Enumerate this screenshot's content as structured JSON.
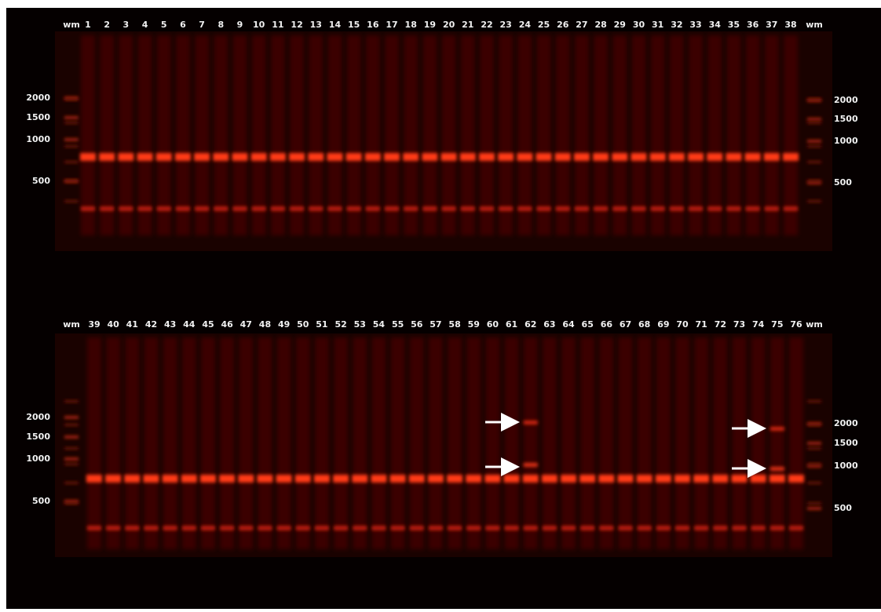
{
  "panels": [
    {
      "lanes": [
        "wm",
        "1",
        "2",
        "3",
        "4",
        "5",
        "6",
        "7",
        "8",
        "9",
        "10",
        "11",
        "12",
        "13",
        "14",
        "15",
        "16",
        "17",
        "18",
        "19",
        "20",
        "21",
        "22",
        "23",
        "24",
        "25",
        "26",
        "27",
        "28",
        "29",
        "30",
        "31",
        "32",
        "33",
        "34",
        "35",
        "36",
        "37",
        "38",
        "wm"
      ],
      "left_markers": [
        "2000",
        "1500",
        "1000",
        "500"
      ],
      "right_markers": [
        "2000",
        "1500",
        "1000",
        "500"
      ]
    },
    {
      "lanes": [
        "wm",
        "39",
        "40",
        "41",
        "42",
        "43",
        "44",
        "45",
        "46",
        "47",
        "48",
        "49",
        "50",
        "51",
        "52",
        "53",
        "54",
        "55",
        "56",
        "57",
        "58",
        "59",
        "60",
        "61",
        "62",
        "63",
        "64",
        "65",
        "66",
        "67",
        "68",
        "69",
        "70",
        "71",
        "72",
        "73",
        "74",
        "75",
        "76",
        "wm"
      ],
      "left_markers": [
        "2000",
        "1500",
        "1000",
        "500"
      ],
      "right_markers": [
        "2000",
        "1500",
        "1000",
        "500"
      ]
    }
  ]
}
